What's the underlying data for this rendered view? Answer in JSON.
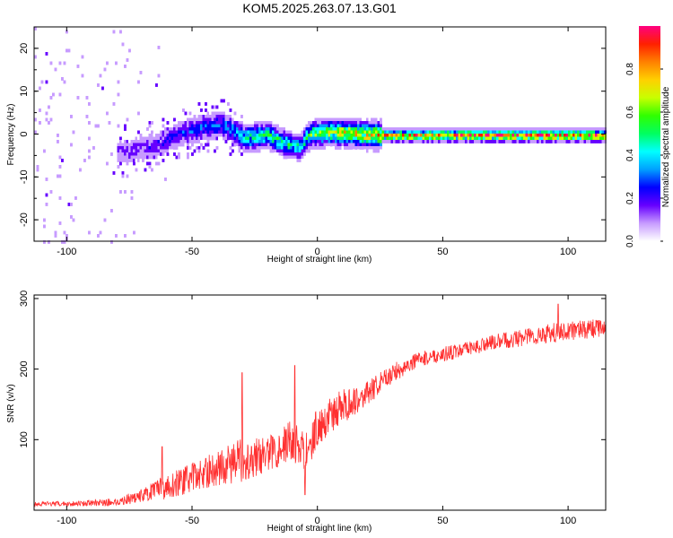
{
  "title": "KOM5.2025.263.07.13.G01",
  "chart_data": [
    {
      "type": "heatmap",
      "xlabel": "Height of straight line (km)",
      "ylabel": "Frequency (Hz)",
      "xlim": [
        -113,
        115
      ],
      "ylim": [
        -25,
        25
      ],
      "xticks": [
        -100,
        -50,
        0,
        50,
        100
      ],
      "xtick_labels": [
        "-100",
        "-50",
        "0",
        "50",
        "100"
      ],
      "yticks": [
        -20,
        -10,
        0,
        10,
        20
      ],
      "ytick_labels": [
        "-20",
        "-10",
        "0",
        "10",
        "20"
      ],
      "colorbar": {
        "label": "Normalized spectral amplitude",
        "range": [
          0,
          1
        ],
        "ticks": [
          0.0,
          0.2,
          0.4,
          0.6,
          0.8
        ],
        "tick_labels": [
          "0.0",
          "0.2",
          "0.4",
          "0.6",
          "0.8"
        ],
        "colors": [
          "#ffffff",
          "#c79bff",
          "#6600ff",
          "#0000ff",
          "#00a0ff",
          "#00ffff",
          "#00ff60",
          "#30ff00",
          "#c8ff00",
          "#ffd000",
          "#ff8000",
          "#ff2000",
          "#ff0080"
        ]
      },
      "ridge": {
        "x": [
          -75,
          -65,
          -55,
          -45,
          -38,
          -35,
          -30,
          -25,
          -20,
          -15,
          -10,
          -7,
          -5,
          -3,
          0,
          5,
          10,
          20,
          30,
          50,
          80,
          115
        ],
        "frequency": [
          -3.5,
          -2.5,
          0.5,
          2,
          2.5,
          1.5,
          -0.5,
          -0.3,
          0.2,
          -1.5,
          -2.5,
          -2.8,
          -0.5,
          0.3,
          0.5,
          0.8,
          0.6,
          0.2,
          0,
          0,
          0,
          0
        ],
        "amplitude": [
          0.15,
          0.2,
          0.25,
          0.3,
          0.3,
          0.35,
          0.45,
          0.5,
          0.5,
          0.5,
          0.45,
          0.4,
          0.5,
          0.55,
          0.6,
          0.65,
          0.7,
          0.75,
          0.85,
          0.9,
          0.9,
          0.9
        ]
      },
      "noise_region_x": [
        -113,
        -60
      ],
      "noise_amplitude": 0.05
    },
    {
      "type": "line",
      "xlabel": "Height of straight line (km)",
      "ylabel": "SNR (v/v)",
      "xlim": [
        -113,
        115
      ],
      "ylim": [
        0,
        305
      ],
      "xticks": [
        -100,
        -50,
        0,
        50,
        100
      ],
      "xtick_labels": [
        "-100",
        "-50",
        "0",
        "50",
        "100"
      ],
      "yticks": [
        100,
        200,
        300
      ],
      "ytick_labels": [
        "100",
        "200",
        "300"
      ],
      "color": "#ff3030",
      "series": [
        {
          "name": "SNR",
          "x": [
            -113,
            -100,
            -90,
            -80,
            -70,
            -60,
            -50,
            -40,
            -30,
            -20,
            -10,
            -5,
            0,
            10,
            20,
            30,
            40,
            50,
            60,
            70,
            80,
            90,
            100,
            115
          ],
          "y": [
            8,
            8,
            9,
            10,
            18,
            28,
            40,
            52,
            62,
            72,
            90,
            70,
            110,
            140,
            160,
            190,
            210,
            218,
            225,
            235,
            240,
            245,
            250,
            255
          ],
          "noise_amplitude": [
            5,
            5,
            6,
            8,
            14,
            25,
            30,
            35,
            45,
            35,
            45,
            45,
            40,
            35,
            25,
            20,
            15,
            15,
            15,
            15,
            18,
            20,
            20,
            18
          ],
          "spikes": [
            {
              "x": -62,
              "y": 90
            },
            {
              "x": -30,
              "y": 195
            },
            {
              "x": -9,
              "y": 205
            },
            {
              "x": -5,
              "y": 22
            },
            {
              "x": 96,
              "y": 292
            }
          ]
        }
      ]
    }
  ]
}
